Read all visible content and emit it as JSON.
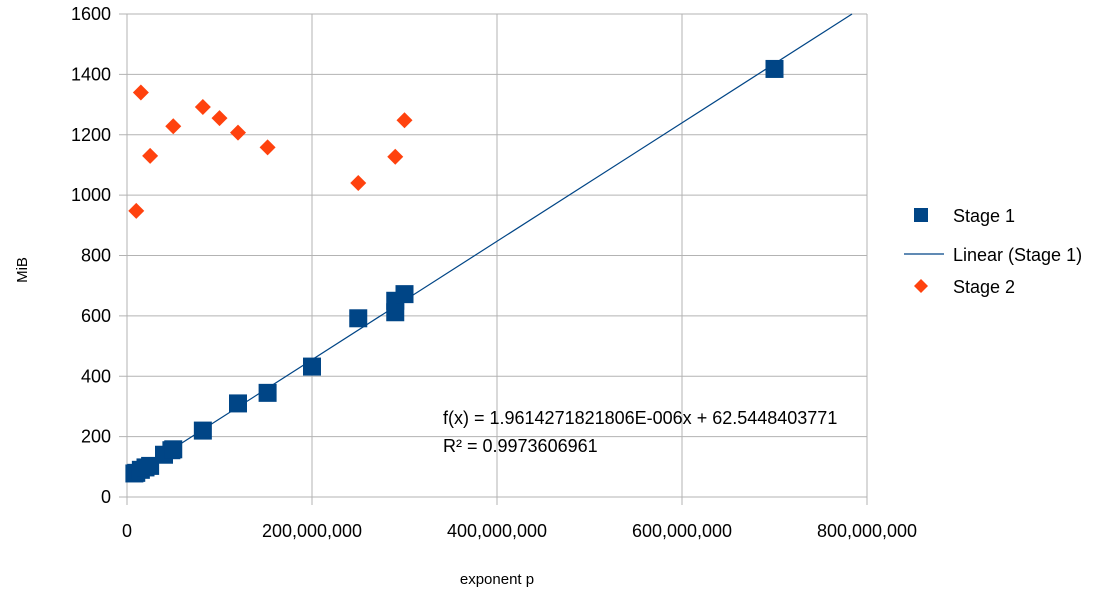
{
  "chart_data": {
    "type": "scatter",
    "title": "",
    "xlabel": "exponent p",
    "ylabel": "MiB",
    "xlim": [
      0,
      800000000
    ],
    "ylim": [
      0,
      1600
    ],
    "x_ticks": [
      0,
      200000000,
      400000000,
      600000000,
      800000000
    ],
    "x_tick_labels": [
      "0",
      "200,000,000",
      "400,000,000",
      "600,000,000",
      "800,000,000"
    ],
    "y_ticks": [
      0,
      200,
      400,
      600,
      800,
      1000,
      1200,
      1400,
      1600
    ],
    "y_tick_labels": [
      "0",
      "200",
      "400",
      "600",
      "800",
      "1000",
      "1200",
      "1400",
      "1600"
    ],
    "grid": true,
    "legend_position": "right",
    "series": [
      {
        "name": "Stage 1",
        "marker": "square",
        "color": "#004586",
        "points": [
          [
            8000000,
            78
          ],
          [
            10000000,
            80
          ],
          [
            15000000,
            90
          ],
          [
            20000000,
            98
          ],
          [
            25000000,
            103
          ],
          [
            40000000,
            140
          ],
          [
            48000000,
            155
          ],
          [
            50000000,
            158
          ],
          [
            82000000,
            220
          ],
          [
            120000000,
            310
          ],
          [
            152000000,
            345
          ],
          [
            200000000,
            432
          ],
          [
            250000000,
            592
          ],
          [
            290000000,
            612
          ],
          [
            290000000,
            650
          ],
          [
            300000000,
            672
          ],
          [
            700000000,
            1418
          ]
        ]
      },
      {
        "name": "Linear (Stage 1)",
        "type": "trendline",
        "color": "#004586",
        "slope": 1.9614271821806e-06,
        "intercept": 62.5448403771
      },
      {
        "name": "Stage 2",
        "marker": "diamond",
        "color": "#ff420e",
        "points": [
          [
            10000000,
            948
          ],
          [
            15000000,
            1340
          ],
          [
            25000000,
            1130
          ],
          [
            50000000,
            1228
          ],
          [
            82000000,
            1292
          ],
          [
            100000000,
            1255
          ],
          [
            120000000,
            1207
          ],
          [
            152000000,
            1158
          ],
          [
            250000000,
            1040
          ],
          [
            290000000,
            1127
          ],
          [
            300000000,
            1248
          ]
        ]
      }
    ],
    "annotations": [
      "f(x) = 1.9614271821806E-006x + 62.5448403771",
      "R² = 0.9973606961"
    ]
  }
}
